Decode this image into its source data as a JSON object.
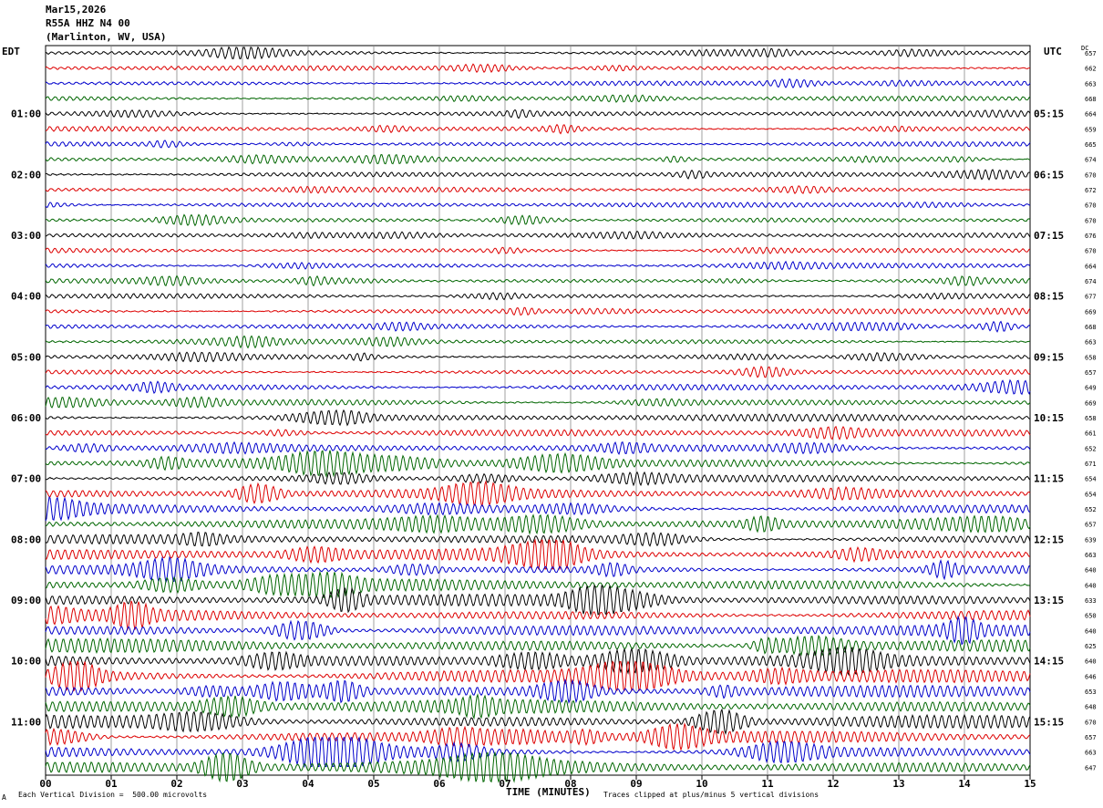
{
  "header": {
    "date": "Mar15,2026",
    "station": "R55A HHZ N4 00",
    "location": "(Marlinton, WV, USA)"
  },
  "left_timezone": "EDT",
  "right_timezone": "UTC",
  "dc_label": "DC",
  "footer": {
    "scale_note": "Each Vertical Division =  500.00 microvolts",
    "clip_note": "Traces clipped at plus/minus 5 vertical divisions",
    "corner_mark": "A"
  },
  "colors": {
    "trace_cycle": [
      "#000000",
      "#dd0000",
      "#0000cc",
      "#006600"
    ],
    "grid": "#888888"
  },
  "chart_data": {
    "type": "line",
    "title": "",
    "xlabel": "TIME (MINUTES)",
    "xlim": [
      0,
      15
    ],
    "x_ticks": [
      "00",
      "01",
      "02",
      "03",
      "04",
      "05",
      "06",
      "07",
      "08",
      "09",
      "10",
      "11",
      "12",
      "13",
      "14",
      "15"
    ],
    "left_hour_labels": [
      {
        "row": 4,
        "label": "01:00"
      },
      {
        "row": 8,
        "label": "02:00"
      },
      {
        "row": 12,
        "label": "03:00"
      },
      {
        "row": 16,
        "label": "04:00"
      },
      {
        "row": 20,
        "label": "05:00"
      },
      {
        "row": 24,
        "label": "06:00"
      },
      {
        "row": 28,
        "label": "07:00"
      },
      {
        "row": 32,
        "label": "08:00"
      },
      {
        "row": 36,
        "label": "09:00"
      },
      {
        "row": 40,
        "label": "10:00"
      },
      {
        "row": 44,
        "label": "11:00"
      }
    ],
    "right_hour_labels": [
      {
        "row": 4,
        "label": "05:15"
      },
      {
        "row": 8,
        "label": "06:15"
      },
      {
        "row": 12,
        "label": "07:15"
      },
      {
        "row": 16,
        "label": "08:15"
      },
      {
        "row": 20,
        "label": "09:15"
      },
      {
        "row": 24,
        "label": "10:15"
      },
      {
        "row": 28,
        "label": "11:15"
      },
      {
        "row": 32,
        "label": "12:15"
      },
      {
        "row": 36,
        "label": "13:15"
      },
      {
        "row": 40,
        "label": "14:15"
      },
      {
        "row": 44,
        "label": "15:15"
      }
    ],
    "dc_values": [
      "657",
      "662",
      "663",
      "668",
      "664",
      "659",
      "665",
      "674",
      "670",
      "672",
      "670",
      "670",
      "676",
      "670",
      "664",
      "674",
      "677",
      "669",
      "668",
      "663",
      "658",
      "657",
      "649",
      "669",
      "658",
      "661",
      "652",
      "671",
      "654",
      "654",
      "652",
      "657",
      "639",
      "663",
      "640",
      "640",
      "633",
      "650",
      "640",
      "625",
      "640",
      "646",
      "653",
      "648",
      "670",
      "657",
      "663",
      "647"
    ],
    "trace_amplitude_level": [
      1,
      1,
      1,
      1,
      1,
      1,
      1,
      1,
      1,
      1,
      1,
      1,
      1,
      1,
      1,
      1,
      1,
      1,
      1,
      1,
      1,
      1,
      2,
      2,
      2,
      2,
      2,
      3,
      2,
      3,
      3,
      3,
      3,
      4,
      3,
      4,
      4,
      4,
      4,
      5,
      5,
      5,
      4,
      5,
      5,
      4,
      4,
      5
    ]
  }
}
